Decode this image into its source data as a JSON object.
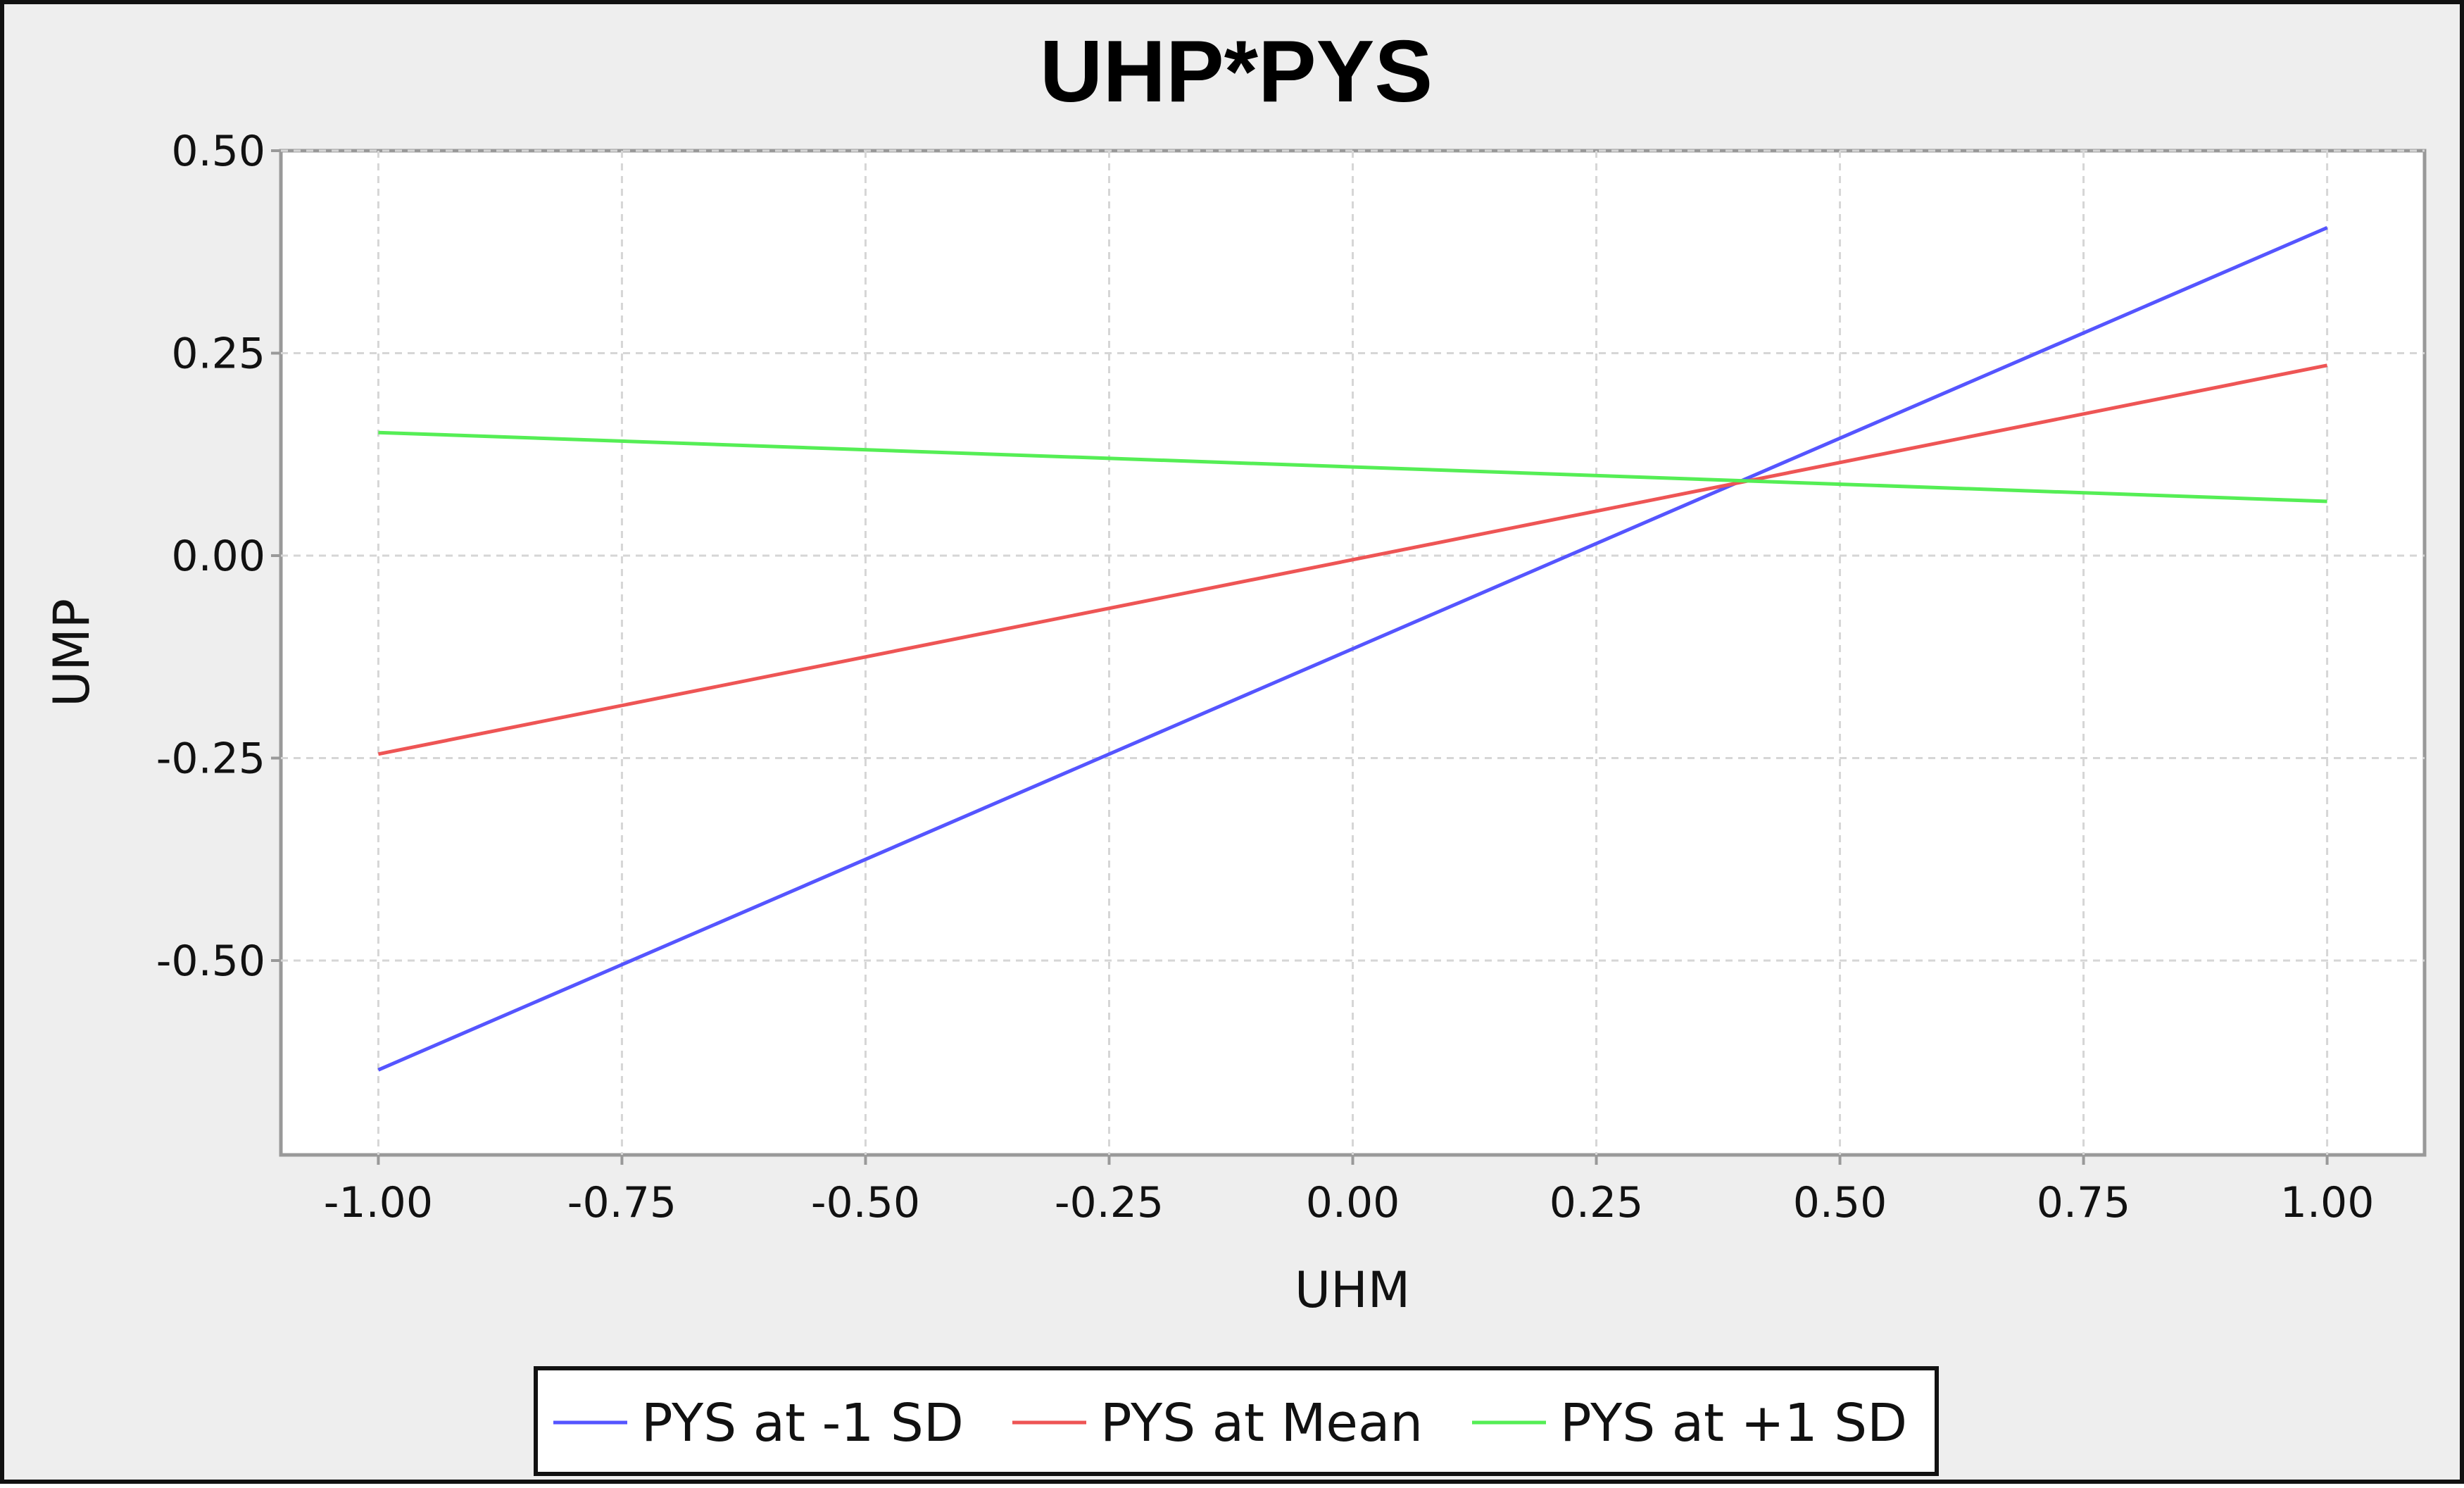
{
  "chart_data": {
    "type": "line",
    "title": "UHP*PYS",
    "xlabel": "UHM",
    "ylabel": "UMP",
    "x": [
      -1.0,
      1.0
    ],
    "xlim": [
      -1.1,
      1.1
    ],
    "ylim": [
      -0.74,
      0.5
    ],
    "xticks": [
      -1.0,
      -0.75,
      -0.5,
      -0.25,
      0.0,
      0.25,
      0.5,
      0.75,
      1.0
    ],
    "yticks": [
      -0.5,
      -0.25,
      0.0,
      0.25,
      0.5
    ],
    "xtick_labels": [
      "-1.00",
      "-0.75",
      "-0.50",
      "-0.25",
      "0.00",
      "0.25",
      "0.50",
      "0.75",
      "1.00"
    ],
    "ytick_labels": [
      "-0.50",
      "-0.25",
      "0.00",
      "0.25",
      "0.50"
    ],
    "grid": true,
    "legend_position": "bottom",
    "series": [
      {
        "name": "PYS at -1 SD",
        "color": "#5555ff",
        "values": [
          -0.635,
          0.405
        ]
      },
      {
        "name": "PYS at Mean",
        "color": "#ee5555",
        "values": [
          -0.245,
          0.235
        ]
      },
      {
        "name": "PYS at +1 SD",
        "color": "#55ee55",
        "values": [
          0.152,
          0.067
        ]
      }
    ]
  }
}
